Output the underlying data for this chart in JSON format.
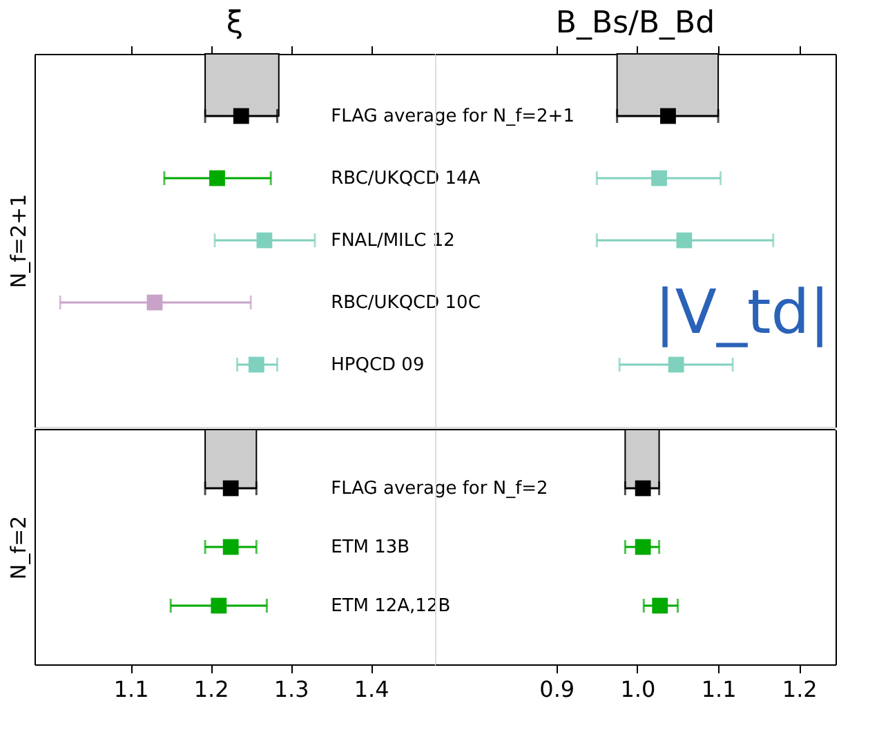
{
  "chart_data": [
    {
      "type": "scatter",
      "orientation": "horizontal",
      "title": "ξ",
      "ylabel": "N_f=2+1",
      "categories": [
        "FLAG average for N_f=2+1",
        "RBC/UKQCD 14A",
        "FNAL/MILC 12",
        "RBC/UKQCD 10C",
        "HPQCD 09"
      ],
      "series": [
        {
          "colors": [
            "#000000",
            "#00aa00",
            "#7fd1bd",
            "#c8a2c8",
            "#7fd1bd"
          ],
          "values": [
            1.238,
            1.208,
            1.267,
            1.13,
            1.257
          ],
          "errors": [
            [
              1.193,
              1.283
            ],
            [
              1.142,
              1.275
            ],
            [
              1.205,
              1.33
            ],
            [
              1.012,
              1.25
            ],
            [
              1.233,
              1.283
            ]
          ]
        }
      ],
      "bands": [
        {
          "axis": "x",
          "from": 1.193,
          "to": 1.285,
          "color": "#cccccc"
        }
      ],
      "xlim": [
        0.98,
        1.48
      ],
      "xticks": [
        1.1,
        1.2,
        1.3,
        1.4
      ],
      "tick_labels": "y",
      "marker": "square",
      "grid": false
    },
    {
      "type": "scatter",
      "orientation": "horizontal",
      "title": "B_Bs/B_Bd",
      "categories": [
        null,
        null,
        null,
        null,
        null
      ],
      "series": [
        {
          "colors": [
            "#000000",
            "#7fd1bd",
            "#7fd1bd",
            null,
            "#7fd1bd"
          ],
          "values": [
            1.038,
            1.027,
            1.058,
            null,
            1.048
          ],
          "errors": [
            [
              0.975,
              1.1
            ],
            [
              0.95,
              1.103
            ],
            [
              0.95,
              1.168
            ],
            null,
            [
              0.978,
              1.118
            ]
          ]
        }
      ],
      "bands": [
        {
          "axis": "x",
          "from": 0.975,
          "to": 1.1,
          "color": "#cccccc"
        }
      ],
      "annotations": [
        "|V_td|"
      ],
      "xlim": [
        0.75,
        1.245
      ],
      "xticks": [
        0.9,
        1,
        1.1,
        1.2
      ],
      "tick_labels": false,
      "marker": "square",
      "grid": false
    },
    {
      "type": "scatter",
      "orientation": "horizontal",
      "ylabel": "N_f=2",
      "categories": [
        "FLAG average for N_f=2",
        "ETM 13B",
        "ETM 12A,12B"
      ],
      "series": [
        {
          "colors": [
            "#000000",
            "#00aa00",
            "#00aa00"
          ],
          "values": [
            1.225,
            1.225,
            1.21
          ],
          "errors": [
            [
              1.193,
              1.257
            ],
            [
              1.193,
              1.257
            ],
            [
              1.15,
              1.27
            ]
          ]
        }
      ],
      "bands": [
        {
          "axis": "x",
          "from": 1.193,
          "to": 1.257,
          "color": "#cccccc"
        }
      ],
      "xlim": [
        0.98,
        1.48
      ],
      "xticks": [
        1.1,
        1.2,
        1.3,
        1.4
      ],
      "marker": "square",
      "grid": false
    },
    {
      "type": "scatter",
      "orientation": "horizontal",
      "categories": [
        null,
        null,
        null
      ],
      "series": [
        {
          "colors": [
            "#000000",
            "#00aa00",
            "#00aa00"
          ],
          "values": [
            1.007,
            1.007,
            1.028
          ],
          "errors": [
            [
              0.985,
              1.027
            ],
            [
              0.985,
              1.027
            ],
            [
              1.008,
              1.05
            ]
          ]
        }
      ],
      "bands": [
        {
          "axis": "x",
          "from": 0.985,
          "to": 1.027,
          "color": "#cccccc"
        }
      ],
      "xlim": [
        0.75,
        1.245
      ],
      "xticks": [
        0.9,
        {
          "value": 1.0,
          "label": "1.0"
        },
        1.1,
        1.2
      ],
      "tick_labels": "x",
      "marker": "square",
      "grid": false
    }
  ]
}
